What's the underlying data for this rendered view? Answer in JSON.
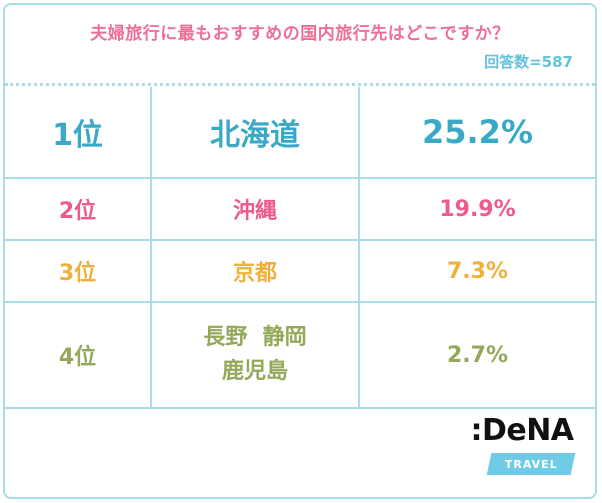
{
  "title": "夫婦旅行に最もおすすめの国内旅行先はどこですか？",
  "respondents": "回答数=587",
  "rows": [
    {
      "rank": "1位",
      "place_lines": [
        "北海道"
      ],
      "percent": "25.2%"
    },
    {
      "rank": "2位",
      "place_lines": [
        "沖縄"
      ],
      "percent": "19.9%"
    },
    {
      "rank": "3位",
      "place_lines": [
        "京都"
      ],
      "percent": "7.3%"
    },
    {
      "rank": "4位",
      "place_lines": [
        "長野  静岡",
        "鹿児島"
      ],
      "percent": "2.7%"
    }
  ],
  "logo": {
    "brand": ":DeNA",
    "sub": "TRAVEL"
  },
  "colors": {
    "border": "#a9ddea",
    "title": "#ee6f95",
    "rank1": "#3aa9c5",
    "rank2": "#ee5a8a",
    "rank3": "#f0b13c",
    "rank4": "#94a85a"
  }
}
